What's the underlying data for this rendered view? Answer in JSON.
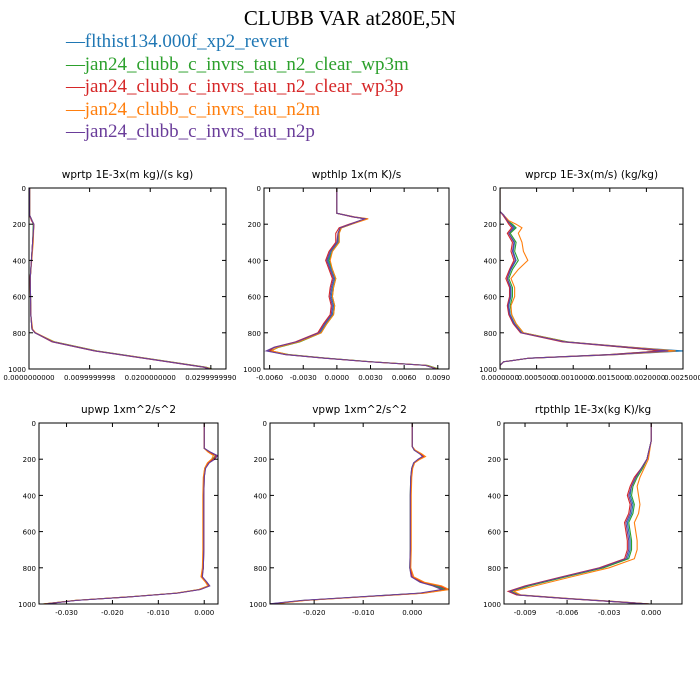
{
  "title": "CLUBB VAR at280E,5N",
  "legend": [
    {
      "label": "flthist134.000f_xp2_revert",
      "color": "#1f77b4"
    },
    {
      "label": "jan24_clubb_c_invrs_tau_n2_clear_wp3m",
      "color": "#2ca02c"
    },
    {
      "label": "jan24_clubb_c_invrs_tau_n2_clear_wp3p",
      "color": "#d62728"
    },
    {
      "label": "jan24_clubb_c_invrs_tau_n2m",
      "color": "#ff7f0e"
    },
    {
      "label": "jan24_clubb_c_invrs_tau_n2p",
      "color": "#6a3d9a"
    }
  ],
  "chart_data": [
    {
      "type": "line",
      "title": "wprtp  1E-3x(m kg)/(s kg)",
      "xlim": [
        0,
        0.0325
      ],
      "ylim": [
        1000,
        0
      ],
      "xticks": [
        0,
        0.01,
        0.02,
        0.03
      ],
      "xticklabels": [
        "0.0000000000",
        "0.0099999998",
        "0.0200000000",
        "0.0299999990"
      ],
      "yticks": [
        0,
        200,
        400,
        600,
        800,
        1000
      ],
      "yticklabels": [
        "0",
        "200",
        "400",
        "600",
        "800",
        "1000"
      ],
      "y": [
        0,
        120,
        150,
        180,
        200,
        300,
        500,
        700,
        780,
        800,
        850,
        900,
        950,
        990,
        1000
      ],
      "series_x": [
        [
          0.0001,
          0.0001,
          0.0001,
          0.0005,
          0.0008,
          0.0006,
          0.0002,
          0.0003,
          0.0005,
          0.001,
          0.004,
          0.011,
          0.021,
          0.029,
          0.03
        ],
        [
          0.0001,
          0.0001,
          0.0001,
          0.0005,
          0.0007,
          0.0006,
          0.0002,
          0.0003,
          0.0005,
          0.001,
          0.0042,
          0.0112,
          0.0212,
          0.0292,
          0.0302
        ],
        [
          0.0001,
          0.0001,
          0.0001,
          0.0004,
          0.0008,
          0.0006,
          0.0002,
          0.0003,
          0.0005,
          0.001,
          0.0038,
          0.0108,
          0.0208,
          0.0288,
          0.0298
        ],
        [
          0.0001,
          0.0001,
          0.0001,
          0.0005,
          0.0008,
          0.0007,
          0.0002,
          0.0003,
          0.0006,
          0.0011,
          0.0041,
          0.0111,
          0.0211,
          0.0291,
          0.0301
        ],
        [
          0.0001,
          0.0001,
          0.0001,
          0.0005,
          0.0008,
          0.0006,
          0.0002,
          0.0003,
          0.0005,
          0.001,
          0.0039,
          0.0109,
          0.0209,
          0.0289,
          0.0299
        ]
      ]
    },
    {
      "type": "line",
      "title": "wpthlp  1x(m K)/s",
      "xlim": [
        -0.0065,
        0.01
      ],
      "ylim": [
        1000,
        0
      ],
      "xticks": [
        -0.006,
        -0.003,
        0,
        0.003,
        0.006,
        0.009
      ],
      "xticklabels": [
        "-0.0060",
        "-0.0030",
        "0.0000",
        "0.0030",
        "0.0060",
        "0.0090"
      ],
      "yticks": [
        0,
        200,
        400,
        600,
        800,
        1000
      ],
      "yticklabels": [
        "0",
        "200",
        "400",
        "600",
        "800",
        "1000"
      ],
      "y": [
        0,
        140,
        160,
        170,
        200,
        220,
        250,
        300,
        350,
        400,
        450,
        500,
        550,
        600,
        650,
        700,
        750,
        800,
        850,
        880,
        900,
        920,
        940,
        960,
        980,
        1000
      ],
      "series_x": [
        [
          0.0,
          0.0,
          0.0015,
          0.0025,
          0.0012,
          0.0003,
          0.0001,
          0.0001,
          -0.0005,
          -0.0008,
          -0.0005,
          -0.0002,
          -0.0004,
          -0.0005,
          -0.0003,
          -0.0004,
          -0.001,
          -0.0015,
          -0.0035,
          -0.0055,
          -0.0062,
          -0.0045,
          -0.001,
          0.003,
          0.008,
          0.009
        ],
        [
          0.0,
          0.0,
          0.0015,
          0.0027,
          0.0013,
          0.0004,
          0.0002,
          0.0002,
          -0.0004,
          -0.0007,
          -0.0004,
          -0.0001,
          -0.0003,
          -0.0004,
          -0.0002,
          -0.0003,
          -0.0009,
          -0.0014,
          -0.0033,
          -0.0052,
          -0.0059,
          -0.0043,
          -0.0009,
          0.0031,
          0.0081,
          0.0091
        ],
        [
          0.0,
          0.0,
          0.0014,
          0.0026,
          0.0011,
          0.0002,
          -0.0001,
          -0.0001,
          -0.0007,
          -0.001,
          -0.0007,
          -0.0004,
          -0.0006,
          -0.0007,
          -0.0005,
          -0.0006,
          -0.0012,
          -0.0017,
          -0.0037,
          -0.0056,
          -0.006,
          -0.0046,
          -0.0011,
          0.0029,
          0.0079,
          0.0089
        ],
        [
          0.0,
          0.0,
          0.0016,
          0.0028,
          0.0013,
          0.0004,
          0.0002,
          0.0002,
          -0.0004,
          -0.0006,
          -0.0004,
          -0.0001,
          -0.0003,
          -0.0004,
          -0.0002,
          -0.0003,
          -0.0009,
          -0.0014,
          -0.0034,
          -0.0053,
          -0.0058,
          -0.0044,
          -0.001,
          0.003,
          0.008,
          0.009
        ],
        [
          0.0,
          0.0,
          0.0015,
          0.0025,
          0.0012,
          0.0003,
          0.0001,
          0.0,
          -0.0006,
          -0.0009,
          -0.0006,
          -0.0003,
          -0.0005,
          -0.0006,
          -0.0004,
          -0.0005,
          -0.0011,
          -0.0016,
          -0.0036,
          -0.0056,
          -0.0063,
          -0.0046,
          -0.0011,
          0.0029,
          0.0079,
          0.0089
        ]
      ]
    },
    {
      "type": "line",
      "title": "wprcp  1E-3x(m/s) (kg/kg)",
      "xlim": [
        0,
        0.0025
      ],
      "ylim": [
        1000,
        0
      ],
      "xticks": [
        0,
        0.0005,
        0.001,
        0.0015,
        0.002,
        0.0025
      ],
      "xticklabels": [
        "0.0000000",
        "0.0005000",
        "0.0010000",
        "0.0015000",
        "0.0020000",
        "0.0025000"
      ],
      "yticks": [
        0,
        200,
        400,
        600,
        800,
        1000
      ],
      "yticklabels": [
        "0",
        "200",
        "400",
        "600",
        "800",
        "1000"
      ],
      "y": [
        0,
        130,
        150,
        180,
        200,
        220,
        250,
        300,
        350,
        400,
        450,
        500,
        550,
        600,
        650,
        700,
        750,
        800,
        850,
        880,
        900,
        920,
        940,
        960,
        980,
        1000
      ],
      "series_x": [
        [
          0.0,
          0.0,
          5e-05,
          0.0001,
          0.00015,
          0.0002,
          0.00012,
          0.0002,
          0.00018,
          0.00022,
          0.00015,
          0.0001,
          0.00015,
          0.00015,
          0.00012,
          0.00014,
          0.0002,
          0.0003,
          0.0009,
          0.0018,
          0.0025,
          0.0016,
          0.0004,
          5e-05,
          0.0,
          0.0
        ],
        [
          0.0,
          0.0,
          5e-05,
          0.0001,
          0.00017,
          0.00022,
          0.00014,
          0.00022,
          0.0002,
          0.00025,
          0.00017,
          0.00012,
          0.00017,
          0.00017,
          0.00014,
          0.00016,
          0.00022,
          0.00032,
          0.00092,
          0.0017,
          0.0022,
          0.0015,
          0.0004,
          5e-05,
          0.0,
          0.0
        ],
        [
          0.0,
          0.0,
          4e-05,
          9e-05,
          0.00012,
          0.00016,
          0.0001,
          0.00017,
          0.00015,
          0.00019,
          0.00013,
          8e-05,
          0.00013,
          0.00013,
          0.0001,
          0.00012,
          0.00018,
          0.00028,
          0.00085,
          0.0017,
          0.0022,
          0.0015,
          0.0004,
          5e-05,
          0.0,
          0.0
        ],
        [
          0.0,
          0.0,
          5e-05,
          0.00012,
          0.00022,
          0.0003,
          0.00025,
          0.0003,
          0.00032,
          0.00038,
          0.00025,
          0.00015,
          0.0002,
          0.0002,
          0.00015,
          0.00016,
          0.00022,
          0.00032,
          0.0009,
          0.0018,
          0.0024,
          0.0016,
          0.0004,
          5e-05,
          0.0,
          0.0
        ],
        [
          0.0,
          0.0,
          5e-05,
          0.0001,
          0.00014,
          0.00018,
          0.00012,
          0.00019,
          0.00017,
          0.00021,
          0.00014,
          0.0001,
          0.00014,
          0.00014,
          0.00011,
          0.00013,
          0.00019,
          0.00029,
          0.00088,
          0.00175,
          0.0023,
          0.00155,
          0.0004,
          5e-05,
          0.0,
          0.0
        ]
      ]
    },
    {
      "type": "line",
      "title": "upwp   1xm^2/s^2",
      "xlim": [
        -0.036,
        0.003
      ],
      "ylim": [
        1000,
        0
      ],
      "xticks": [
        -0.03,
        -0.02,
        -0.01,
        0
      ],
      "xticklabels": [
        "-0.030",
        "-0.020",
        "-0.010",
        "0.000"
      ],
      "yticks": [
        0,
        200,
        400,
        600,
        800,
        1000
      ],
      "yticklabels": [
        "0",
        "200",
        "400",
        "600",
        "800",
        "1000"
      ],
      "y": [
        0,
        120,
        140,
        160,
        180,
        200,
        220,
        250,
        300,
        400,
        500,
        600,
        700,
        800,
        850,
        880,
        900,
        920,
        940,
        960,
        980,
        1000
      ],
      "series_x": [
        [
          0.0,
          0.0,
          0.0,
          0.0012,
          0.0028,
          0.0022,
          0.001,
          0.0002,
          0.0,
          -0.0001,
          -0.0001,
          -0.0001,
          -0.0001,
          -0.0002,
          -0.0005,
          0.0005,
          0.001,
          -0.001,
          -0.006,
          -0.016,
          -0.028,
          -0.035
        ],
        [
          0.0,
          0.0,
          0.0,
          0.001,
          0.0025,
          0.0018,
          0.0008,
          0.0001,
          -0.0001,
          -0.0002,
          -0.0002,
          -0.0002,
          -0.0002,
          -0.0003,
          -0.0006,
          0.0004,
          0.0009,
          -0.0011,
          -0.0061,
          -0.0161,
          -0.0281,
          -0.0351
        ],
        [
          0.0,
          0.0,
          0.0,
          0.0011,
          0.0026,
          0.002,
          0.0009,
          0.0002,
          0.0,
          -0.0001,
          -0.0001,
          -0.0001,
          -0.0001,
          -0.0002,
          -0.0005,
          0.0005,
          0.0011,
          -0.0009,
          -0.0059,
          -0.0159,
          -0.0279,
          -0.0349
        ],
        [
          0.0,
          0.0,
          0.0,
          0.0008,
          0.002,
          0.0016,
          0.0007,
          0.0001,
          -0.0002,
          -0.0003,
          -0.0003,
          -0.0003,
          -0.0003,
          -0.0004,
          -0.0007,
          0.0003,
          0.0008,
          -0.0012,
          -0.0062,
          -0.0162,
          -0.0282,
          -0.0352
        ],
        [
          0.0,
          0.0,
          0.0,
          0.0013,
          0.0029,
          0.0023,
          0.0011,
          0.0003,
          0.0,
          -0.0001,
          -0.0001,
          -0.0001,
          -0.0001,
          -0.0002,
          -0.0004,
          0.0006,
          0.0012,
          -0.0008,
          -0.0058,
          -0.0158,
          -0.0278,
          -0.0348
        ]
      ]
    },
    {
      "type": "line",
      "title": "vpwp   1xm^2/s^2",
      "xlim": [
        -0.029,
        0.0075
      ],
      "ylim": [
        1000,
        0
      ],
      "xticks": [
        -0.02,
        -0.01,
        0
      ],
      "xticklabels": [
        "-0.020",
        "-0.010",
        "0.000"
      ],
      "yticks": [
        0,
        200,
        400,
        600,
        800,
        1000
      ],
      "yticklabels": [
        "0",
        "200",
        "400",
        "600",
        "800",
        "1000"
      ],
      "y": [
        0,
        130,
        150,
        170,
        185,
        200,
        220,
        250,
        300,
        400,
        500,
        600,
        700,
        800,
        850,
        880,
        900,
        920,
        940,
        960,
        980,
        1000
      ],
      "series_x": [
        [
          0.0,
          0.0,
          0.0005,
          0.0018,
          0.0025,
          0.0015,
          0.0004,
          0.0,
          -0.0002,
          -0.0003,
          -0.0003,
          -0.0003,
          -0.0003,
          -0.0004,
          0.0,
          0.002,
          0.005,
          0.007,
          0.002,
          -0.01,
          -0.022,
          -0.029
        ],
        [
          0.0,
          0.0,
          0.0004,
          0.0016,
          0.0022,
          0.0013,
          0.0003,
          -0.0001,
          -0.0003,
          -0.0004,
          -0.0004,
          -0.0004,
          -0.0004,
          -0.0005,
          -0.0001,
          0.0018,
          0.0045,
          0.0065,
          0.0018,
          -0.0102,
          -0.0222,
          -0.0292
        ],
        [
          0.0,
          0.0,
          0.0005,
          0.0017,
          0.0024,
          0.0014,
          0.0004,
          0.0,
          -0.0002,
          -0.0003,
          -0.0003,
          -0.0003,
          -0.0003,
          -0.0004,
          0.0,
          0.0022,
          0.0055,
          0.0072,
          0.0021,
          -0.0099,
          -0.0219,
          -0.0289
        ],
        [
          0.0,
          0.0,
          0.0006,
          0.0019,
          0.0027,
          0.0016,
          0.0005,
          0.0001,
          -0.0001,
          -0.0002,
          -0.0002,
          -0.0002,
          -0.0002,
          -0.0003,
          0.0003,
          0.0025,
          0.006,
          0.0075,
          0.0024,
          -0.0096,
          -0.0216,
          -0.0286
        ],
        [
          0.0,
          0.0,
          0.0004,
          0.0015,
          0.0021,
          0.0012,
          0.0003,
          -0.0001,
          -0.0003,
          -0.0004,
          -0.0004,
          -0.0004,
          -0.0004,
          -0.0005,
          -0.0002,
          0.0016,
          0.0042,
          0.006,
          0.0015,
          -0.0105,
          -0.0225,
          -0.0295
        ]
      ]
    },
    {
      "type": "line",
      "title": "rtpthlp  1E-3x(kg K)/kg",
      "xlim": [
        -0.0105,
        0.0022
      ],
      "ylim": [
        1000,
        0
      ],
      "xticks": [
        -0.009,
        -0.006,
        -0.003,
        0
      ],
      "xticklabels": [
        "-0.009",
        "-0.006",
        "-0.003",
        "0.000"
      ],
      "yticks": [
        0,
        200,
        400,
        600,
        800,
        1000
      ],
      "yticklabels": [
        "0",
        "200",
        "400",
        "600",
        "800",
        "1000"
      ],
      "y": [
        0,
        100,
        200,
        250,
        300,
        350,
        400,
        450,
        500,
        550,
        600,
        650,
        700,
        750,
        800,
        850,
        900,
        930,
        950,
        970,
        990,
        1000
      ],
      "series_x": [
        [
          0.0,
          0.0,
          -0.0003,
          -0.0007,
          -0.0011,
          -0.0014,
          -0.0015,
          -0.0013,
          -0.0014,
          -0.0017,
          -0.0016,
          -0.0015,
          -0.0015,
          -0.0017,
          -0.0035,
          -0.0062,
          -0.0088,
          -0.0101,
          -0.0095,
          -0.006,
          -0.002,
          -0.0001
        ],
        [
          0.0,
          0.0,
          -0.0003,
          -0.0006,
          -0.001,
          -0.0013,
          -0.0014,
          -0.0012,
          -0.0013,
          -0.0016,
          -0.0015,
          -0.0014,
          -0.0014,
          -0.0016,
          -0.0034,
          -0.0061,
          -0.0087,
          -0.01,
          -0.0094,
          -0.0059,
          -0.0019,
          -0.0001
        ],
        [
          0.0,
          0.0,
          -0.0003,
          -0.0007,
          -0.0012,
          -0.0015,
          -0.0017,
          -0.0015,
          -0.0016,
          -0.0019,
          -0.0018,
          -0.0017,
          -0.0017,
          -0.0019,
          -0.0037,
          -0.0064,
          -0.009,
          -0.0102,
          -0.0096,
          -0.0061,
          -0.0021,
          -0.0001
        ],
        [
          0.0,
          0.0,
          -0.0002,
          -0.0005,
          -0.0008,
          -0.001,
          -0.0009,
          -0.0008,
          -0.0009,
          -0.0012,
          -0.0011,
          -0.001,
          -0.001,
          -0.0012,
          -0.003,
          -0.0057,
          -0.0083,
          -0.0098,
          -0.0093,
          -0.0058,
          -0.0018,
          -0.0001
        ],
        [
          0.0,
          0.0,
          -0.0003,
          -0.0007,
          -0.0011,
          -0.0014,
          -0.0016,
          -0.0014,
          -0.0015,
          -0.0018,
          -0.0017,
          -0.0016,
          -0.0016,
          -0.0018,
          -0.0036,
          -0.0063,
          -0.0089,
          -0.0101,
          -0.0095,
          -0.006,
          -0.002,
          -0.0001
        ]
      ]
    }
  ]
}
